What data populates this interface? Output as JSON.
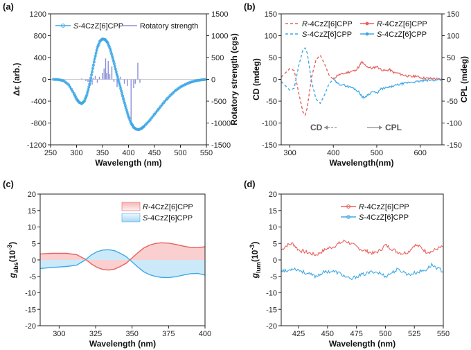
{
  "colors": {
    "red": "#e8605c",
    "blue": "#3ea8e6",
    "purple": "#8a8fd8",
    "redFill": "#f7c4c3",
    "blueFill": "#bfe3f7",
    "gray": "#8a8a8a"
  },
  "chart_data": [
    {
      "id": "a",
      "type": "line",
      "panel_label": "(a)",
      "xlabel": "Wavelength (nm)",
      "ylabel": "Δε (arb.)",
      "y2label": "Rotatory strength (cgs)",
      "xlim": [
        250,
        550
      ],
      "ylim": [
        -1200,
        1200
      ],
      "y2lim": [
        -1500,
        1500
      ],
      "xticks": [
        250,
        300,
        350,
        400,
        450,
        500,
        550
      ],
      "yticks": [
        -1200,
        -800,
        -400,
        0,
        400,
        800,
        1200
      ],
      "y2ticks": [
        -1500,
        -1000,
        -500,
        0,
        500,
        1000,
        1500
      ],
      "legend": [
        {
          "prefix": "S",
          "text": "-4CzZ[6]CPP",
          "color": "#3ea8e6",
          "style": "marker-line"
        },
        {
          "text": "Rotatory strength",
          "color": "#8a8fd8",
          "style": "line"
        }
      ],
      "series": [
        {
          "name": "S-4CzZ[6]CPP",
          "color": "#3ea8e6",
          "x": [
            255,
            265,
            275,
            285,
            295,
            300,
            305,
            310,
            315,
            320,
            325,
            330,
            335,
            340,
            345,
            350,
            355,
            360,
            365,
            370,
            375,
            380,
            385,
            390,
            395,
            400,
            405,
            410,
            415,
            420,
            425,
            430,
            440,
            450,
            460,
            470,
            480,
            490,
            500,
            510,
            520,
            530,
            540,
            550
          ],
          "y": [
            0,
            -5,
            -25,
            -100,
            -260,
            -360,
            -420,
            -445,
            -400,
            -280,
            -90,
            140,
            380,
            580,
            700,
            740,
            730,
            670,
            550,
            380,
            190,
            10,
            -170,
            -350,
            -520,
            -680,
            -800,
            -880,
            -915,
            -920,
            -900,
            -860,
            -760,
            -640,
            -520,
            -400,
            -300,
            -210,
            -140,
            -90,
            -50,
            -25,
            -10,
            0
          ]
        }
      ],
      "bars": {
        "name": "Rotatory strength",
        "color": "#8a8fd8",
        "x": [
          310,
          318,
          322,
          326,
          330,
          332,
          336,
          340,
          344,
          350,
          353,
          356,
          358,
          361,
          364,
          368,
          372,
          378,
          385,
          392,
          398,
          405,
          410,
          413,
          418,
          422
        ],
        "y": [
          20,
          -40,
          -60,
          -150,
          -120,
          40,
          80,
          -80,
          60,
          150,
          250,
          480,
          150,
          420,
          120,
          300,
          -60,
          -180,
          60,
          -100,
          -150,
          -1050,
          -200,
          -100,
          380,
          -80
        ]
      }
    },
    {
      "id": "b",
      "type": "line",
      "panel_label": "(b)",
      "xlabel": "Wavelength(nm)",
      "ylabel": "CD (mdeg)",
      "y2label": "CPL (mdeg)",
      "xlim": [
        280,
        650
      ],
      "ylim": [
        -150,
        150
      ],
      "y2lim": [
        -150,
        150
      ],
      "xticks": [
        300,
        400,
        500,
        600
      ],
      "yticks": [
        -150,
        -100,
        -50,
        0,
        50,
        100,
        150
      ],
      "y2ticks": [
        -150,
        -100,
        -50,
        0,
        50,
        100,
        150
      ],
      "legend_left": [
        {
          "prefix": "R",
          "text": "-4CzZ[6]CPP",
          "color": "#e8605c",
          "style": "dash"
        },
        {
          "prefix": "S",
          "text": "-4CzZ[6]CPP",
          "color": "#3ea8e6",
          "style": "dash"
        }
      ],
      "legend_right": [
        {
          "prefix": "R",
          "text": "-4CzZ[6]CPP",
          "color": "#e8605c",
          "style": "marker-line"
        },
        {
          "prefix": "S",
          "text": "-4CzZ[6]CPP",
          "color": "#3ea8e6",
          "style": "marker-line"
        }
      ],
      "annotations": {
        "cd": "CD",
        "cpl": "CPL"
      },
      "cd_x": [
        280,
        290,
        300,
        310,
        320,
        330,
        335,
        340,
        350,
        360,
        370,
        380,
        390,
        400
      ],
      "cd_r": [
        5,
        15,
        25,
        20,
        -30,
        -75,
        -82,
        -65,
        5,
        45,
        55,
        35,
        10,
        0
      ],
      "cd_s": [
        -5,
        -15,
        -25,
        -20,
        30,
        68,
        72,
        60,
        -5,
        -45,
        -55,
        -35,
        -10,
        0
      ],
      "cpl_x": [
        400,
        410,
        420,
        430,
        440,
        450,
        460,
        465,
        470,
        480,
        490,
        500,
        510,
        520,
        530,
        540,
        550,
        560,
        570,
        580,
        590,
        600,
        610,
        620,
        630,
        640,
        650
      ],
      "cpl_r": [
        0,
        10,
        12,
        15,
        18,
        20,
        30,
        40,
        35,
        28,
        25,
        30,
        22,
        20,
        22,
        15,
        14,
        10,
        8,
        6,
        8,
        4,
        3,
        2,
        2,
        1,
        0
      ],
      "cpl_s": [
        0,
        -10,
        -12,
        -15,
        -18,
        -22,
        -30,
        -38,
        -42,
        -35,
        -28,
        -32,
        -22,
        -20,
        -18,
        -15,
        -12,
        -10,
        -8,
        -6,
        -6,
        -4,
        -3,
        -2,
        -2,
        -1,
        0
      ]
    },
    {
      "id": "c",
      "type": "area",
      "panel_label": "(c)",
      "xlabel": "Wavelength (nm)",
      "ylabel_base": "g",
      "ylabel_sub": "abs",
      "ylabel_unit": "(10",
      "ylabel_exp": "-3",
      "ylabel_close": ")",
      "xlim": [
        287,
        400
      ],
      "ylim": [
        -20,
        20
      ],
      "xticks": [
        300,
        325,
        350,
        375,
        400
      ],
      "yticks": [
        -20,
        -15,
        -10,
        -5,
        0,
        5,
        10,
        15,
        20
      ],
      "legend": [
        {
          "prefix": "R",
          "text": "-4CzZ[6]CPP",
          "color": "#e8605c"
        },
        {
          "prefix": "S",
          "text": "-4CzZ[6]CPP",
          "color": "#3ea8e6"
        }
      ],
      "x": [
        287,
        295,
        305,
        312,
        318,
        322,
        326,
        330,
        334,
        338,
        342,
        346,
        350,
        354,
        358,
        362,
        366,
        370,
        375,
        380,
        385,
        390,
        395,
        400
      ],
      "r": [
        1.8,
        2.0,
        2.0,
        1.6,
        0.2,
        -1.2,
        -2.3,
        -2.9,
        -3.1,
        -2.8,
        -2.0,
        -1.0,
        0.6,
        2.2,
        3.6,
        4.5,
        5.0,
        5.2,
        5.1,
        4.7,
        4.2,
        3.8,
        3.7,
        4.0
      ],
      "s": [
        -2.6,
        -2.3,
        -2.0,
        -1.6,
        0.0,
        1.5,
        2.5,
        3.0,
        3.1,
        2.8,
        2.0,
        1.0,
        -0.6,
        -2.2,
        -3.6,
        -4.5,
        -5.0,
        -5.3,
        -5.4,
        -5.1,
        -4.6,
        -4.2,
        -4.1,
        -4.6
      ]
    },
    {
      "id": "d",
      "type": "line",
      "panel_label": "(d)",
      "xlabel": "Wavelength (nm)",
      "ylabel_base": "g",
      "ylabel_sub": "lum",
      "ylabel_unit": "(10",
      "ylabel_exp": "-3",
      "ylabel_close": ")",
      "xlim": [
        410,
        550
      ],
      "ylim": [
        -20,
        20
      ],
      "xticks": [
        425,
        450,
        475,
        500,
        525,
        550
      ],
      "yticks": [
        -20,
        -15,
        -10,
        -5,
        0,
        5,
        10,
        15,
        20
      ],
      "legend": [
        {
          "prefix": "R",
          "text": "-4CzZ[6]CPP",
          "color": "#e8605c"
        },
        {
          "prefix": "S",
          "text": "-4CzZ[6]CPP",
          "color": "#3ea8e6"
        }
      ],
      "x": [
        410,
        415,
        420,
        425,
        430,
        435,
        440,
        445,
        450,
        455,
        460,
        465,
        470,
        475,
        480,
        485,
        490,
        495,
        500,
        505,
        510,
        515,
        520,
        525,
        530,
        535,
        540,
        545,
        550
      ],
      "r": [
        3.0,
        4.5,
        5.0,
        3.0,
        2.5,
        2.0,
        1.5,
        2.5,
        3.5,
        4.0,
        5.0,
        5.8,
        5.0,
        4.0,
        3.0,
        2.5,
        2.0,
        2.8,
        4.5,
        3.5,
        2.5,
        2.0,
        2.5,
        4.5,
        4.0,
        2.5,
        2.5,
        3.5,
        4.0
      ],
      "s": [
        -3.0,
        -3.5,
        -2.5,
        -3.0,
        -3.8,
        -4.5,
        -5.0,
        -4.0,
        -3.5,
        -3.5,
        -4.0,
        -5.0,
        -6.0,
        -5.0,
        -4.5,
        -4.0,
        -3.5,
        -4.0,
        -5.0,
        -4.0,
        -3.0,
        -3.5,
        -4.5,
        -4.0,
        -3.5,
        -3.0,
        -1.5,
        -2.5,
        -3.5
      ]
    }
  ]
}
